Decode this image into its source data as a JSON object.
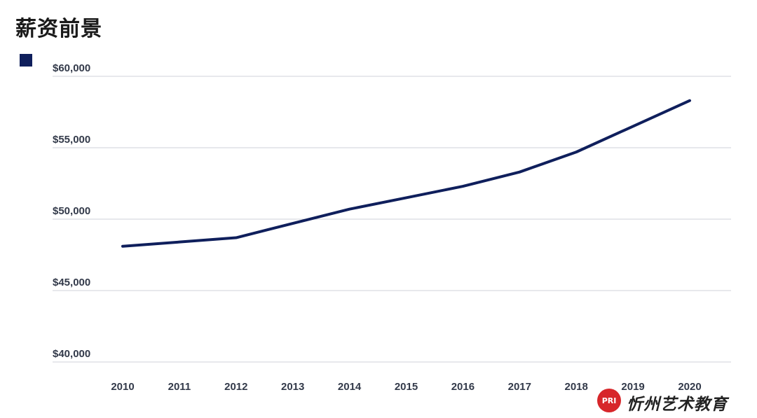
{
  "title": "薪资前景",
  "colors": {
    "line": "#0f1f5c",
    "grid": "#cfd2d8",
    "text": "#333a4a"
  },
  "watermark": {
    "logo_text": "PRI",
    "text": "忻州艺术教育"
  },
  "chart_data": {
    "type": "line",
    "title": "薪资前景",
    "xlabel": "",
    "ylabel": "",
    "x": [
      2010,
      2011,
      2012,
      2013,
      2014,
      2015,
      2016,
      2017,
      2018,
      2019,
      2020
    ],
    "x_tick_labels": [
      "2010",
      "2011",
      "2012",
      "2013",
      "2014",
      "2015",
      "2016",
      "2017",
      "2018",
      "2019",
      "2020"
    ],
    "series": [
      {
        "color": "#0f1f5c",
        "values": [
          48100,
          48400,
          48700,
          49700,
          50700,
          51500,
          52300,
          53300,
          54700,
          56500,
          58300
        ]
      }
    ],
    "ylim": [
      40000,
      60000
    ],
    "y_ticks": [
      40000,
      45000,
      50000,
      55000,
      60000
    ],
    "y_tick_labels": [
      "$40,000",
      "$45,000",
      "$50,000",
      "$55,000",
      "$60,000"
    ],
    "grid": true,
    "legend": "top-left"
  }
}
